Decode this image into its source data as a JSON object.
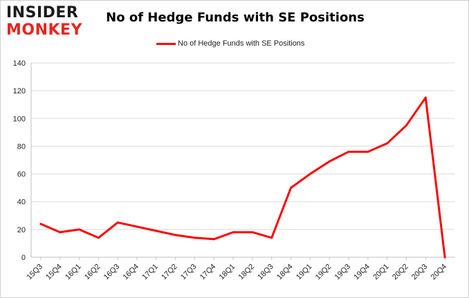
{
  "logo": {
    "line1": "INSIDER",
    "line2": "MONKEY",
    "line1_color": "#1a1a1a",
    "line2_color": "#e8251f"
  },
  "chart_data": {
    "type": "line",
    "title": "No of Hedge Funds with SE Positions",
    "xlabel": "",
    "ylabel": "",
    "ylim": [
      0,
      140
    ],
    "yticks": [
      0,
      20,
      40,
      60,
      80,
      100,
      120,
      140
    ],
    "grid": true,
    "legend_position": "top-center",
    "categories": [
      "15Q3",
      "15Q4",
      "16Q1",
      "16Q2",
      "16Q3",
      "16Q4",
      "17Q1",
      "17Q2",
      "17Q3",
      "17Q4",
      "18Q1",
      "18Q2",
      "18Q3",
      "18Q4",
      "19Q1",
      "19Q2",
      "19Q3",
      "19Q4",
      "20Q1",
      "20Q2",
      "20Q3",
      "20Q4"
    ],
    "series": [
      {
        "name": "No of Hedge Funds with SE Positions",
        "color": "#ff0000",
        "values": [
          24,
          18,
          20,
          14,
          25,
          22,
          19,
          16,
          14,
          13,
          18,
          18,
          14,
          50,
          60,
          69,
          76,
          76,
          82,
          95,
          115,
          0
        ]
      }
    ]
  }
}
